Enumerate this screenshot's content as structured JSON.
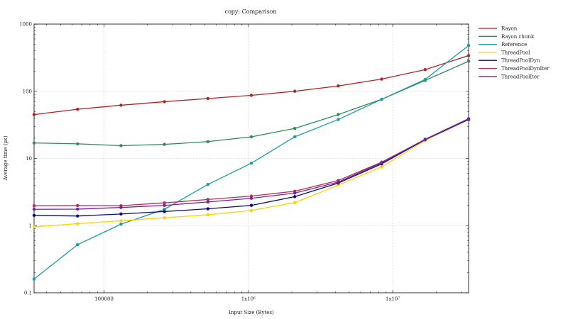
{
  "chart_data": {
    "type": "line",
    "title": "copy: Comparison",
    "xlabel": "Input Size (Bytes)",
    "ylabel": "Average time (µs)",
    "x_scale": "log",
    "y_scale": "log",
    "xlim": [
      32768,
      33554432
    ],
    "ylim": [
      0.1,
      1000
    ],
    "x_ticks": [
      {
        "value": 100000,
        "label": "100000"
      },
      {
        "value": 1000000,
        "label": "1x10⁶"
      },
      {
        "value": 10000000,
        "label": "1x10⁷"
      }
    ],
    "y_ticks": [
      {
        "value": 0.1,
        "label": "0.1"
      },
      {
        "value": 1,
        "label": "1"
      },
      {
        "value": 10,
        "label": "10"
      },
      {
        "value": 100,
        "label": "100"
      },
      {
        "value": 1000,
        "label": "1000"
      }
    ],
    "grid": true,
    "legend_position": "top-right",
    "x": [
      32768,
      65536,
      131072,
      262144,
      524288,
      1048576,
      2097152,
      4194304,
      8388608,
      16777216,
      33554432
    ],
    "series": [
      {
        "name": "Rayon",
        "color": "#b22222",
        "values": [
          45,
          54,
          62,
          70,
          78,
          87,
          100,
          120,
          152,
          210,
          340
        ]
      },
      {
        "name": "Rayon chunk",
        "color": "#2e8b57",
        "values": [
          17,
          16.5,
          15.5,
          16.2,
          17.8,
          21,
          28,
          45,
          76,
          145,
          280
        ]
      },
      {
        "name": "Reference",
        "color": "#1e9ba0",
        "values": [
          0.16,
          0.52,
          1.05,
          1.75,
          4.1,
          8.5,
          21,
          38,
          76,
          150,
          480
        ]
      },
      {
        "name": "ThreadPool",
        "color": "#f2d600",
        "values": [
          0.96,
          1.07,
          1.18,
          1.31,
          1.45,
          1.68,
          2.2,
          4.0,
          7.5,
          18.5,
          38
        ]
      },
      {
        "name": "ThreadPoolDyn",
        "color": "#0a0a7a",
        "values": [
          1.42,
          1.39,
          1.49,
          1.62,
          1.78,
          2.0,
          2.7,
          4.3,
          8.3,
          19,
          38
        ]
      },
      {
        "name": "ThreadPoolDynIter",
        "color": "#b0305a",
        "values": [
          1.98,
          1.99,
          1.98,
          2.18,
          2.45,
          2.75,
          3.25,
          4.7,
          8.8,
          19.2,
          39
        ]
      },
      {
        "name": "ThreadPoolIter",
        "color": "#7a1fa0",
        "values": [
          1.75,
          1.76,
          1.86,
          2.0,
          2.25,
          2.55,
          3.05,
          4.45,
          8.6,
          19.3,
          39
        ]
      }
    ]
  }
}
